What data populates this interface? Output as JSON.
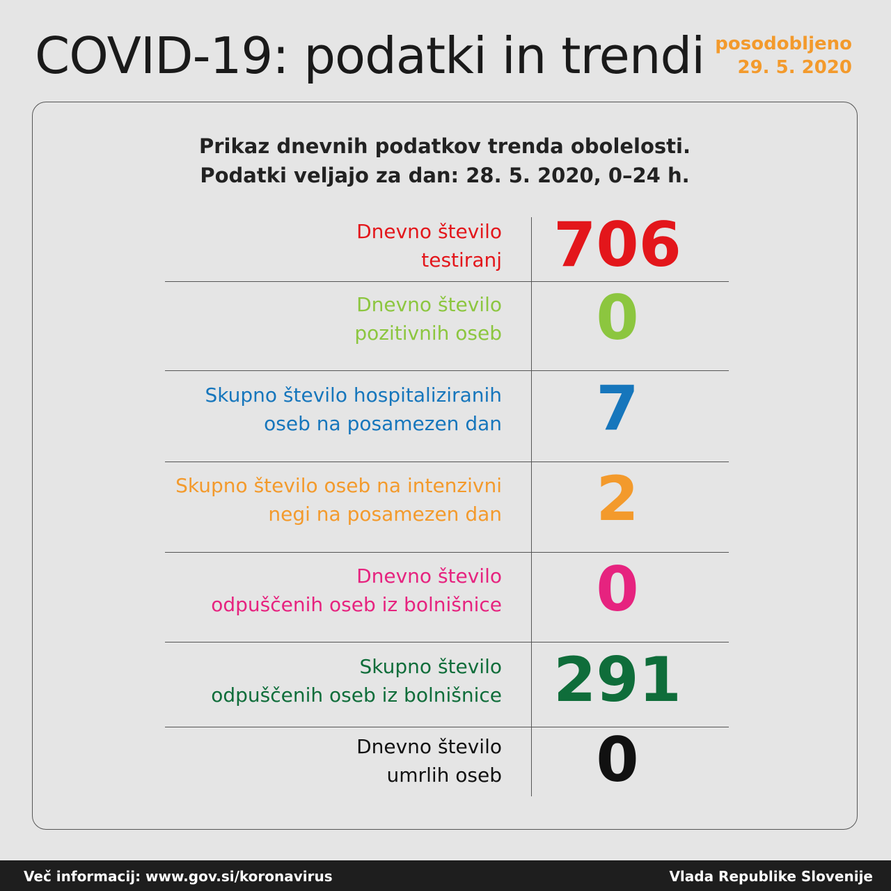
{
  "header": {
    "title": "COVID-19: podatki in trendi",
    "updated_label": "posodobljeno",
    "updated_date": "29. 5. 2020"
  },
  "panel": {
    "subtitle_line1": "Prikaz dnevnih podatkov trenda obolelosti.",
    "subtitle_line2": "Podatki veljajo za dan: 28. 5. 2020, 0–24 h.",
    "rows": [
      {
        "label_line1": "Dnevno število",
        "label_line2": "testiranj",
        "value": 706,
        "color": "#e3161b"
      },
      {
        "label_line1": "Dnevno število",
        "label_line2": "pozitivnih oseb",
        "value": 0,
        "color": "#8cc63f"
      },
      {
        "label_line1": "Skupno število hospitaliziranih",
        "label_line2": "oseb na posamezen dan",
        "value": 7,
        "color": "#1676bc"
      },
      {
        "label_line1": "Skupno število oseb na intenzivni",
        "label_line2": "negi na posamezen dan",
        "value": 2,
        "color": "#f39a2c"
      },
      {
        "label_line1": "Dnevno število",
        "label_line2": "odpuščenih oseb iz bolnišnice",
        "value": 0,
        "color": "#e6237f"
      },
      {
        "label_line1": "Skupno število",
        "label_line2": "odpuščenih oseb iz bolnišnice",
        "value": 291,
        "color": "#0f6d3a"
      },
      {
        "label_line1": "Dnevno število",
        "label_line2": "umrlih oseb",
        "value": 0,
        "color": "#111111"
      }
    ]
  },
  "footer": {
    "left": "Več informacij: www.gov.si/koronavirus",
    "right": "Vlada Republike Slovenije"
  }
}
